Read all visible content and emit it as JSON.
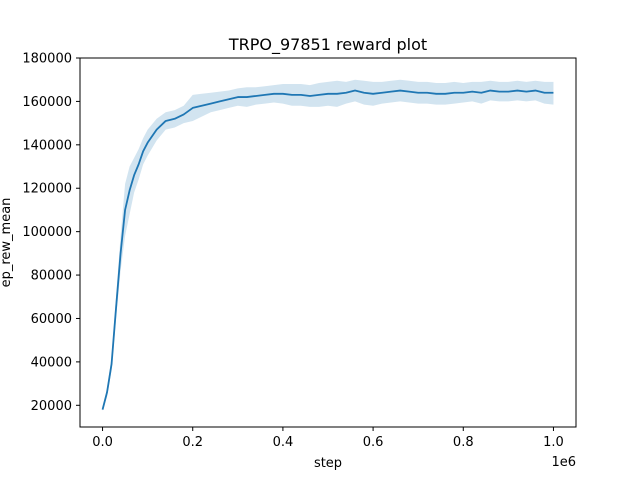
{
  "chart_data": {
    "type": "line",
    "title": "TRPO_97851 reward plot",
    "xlabel": "step",
    "ylabel": "ep_rew_mean",
    "x_offset_label": "1e6",
    "xlim": [
      -0.05,
      1.05
    ],
    "ylim": [
      10000,
      180000
    ],
    "xticks": [
      0.0,
      0.2,
      0.4,
      0.6,
      0.8,
      1.0
    ],
    "xtick_labels": [
      "0.0",
      "0.2",
      "0.4",
      "0.6",
      "0.8",
      "1.0"
    ],
    "yticks": [
      20000,
      40000,
      60000,
      80000,
      100000,
      120000,
      140000,
      160000,
      180000
    ],
    "ytick_labels": [
      "20000",
      "40000",
      "60000",
      "80000",
      "100000",
      "120000",
      "140000",
      "160000",
      "180000"
    ],
    "grid": false,
    "colors": {
      "line": "#1f77b4",
      "band": "#1f77b4"
    },
    "series": [
      {
        "x": [
          0.0,
          0.01,
          0.02,
          0.03,
          0.04,
          0.05,
          0.06,
          0.07,
          0.08,
          0.09,
          0.1,
          0.12,
          0.14,
          0.16,
          0.18,
          0.2,
          0.22,
          0.24,
          0.26,
          0.28,
          0.3,
          0.32,
          0.34,
          0.36,
          0.38,
          0.4,
          0.42,
          0.44,
          0.46,
          0.48,
          0.5,
          0.52,
          0.54,
          0.56,
          0.58,
          0.6,
          0.62,
          0.64,
          0.66,
          0.68,
          0.7,
          0.72,
          0.74,
          0.76,
          0.78,
          0.8,
          0.82,
          0.84,
          0.86,
          0.88,
          0.9,
          0.92,
          0.94,
          0.96,
          0.98,
          1.0
        ],
        "y": [
          18000,
          26000,
          39000,
          65000,
          90000,
          110000,
          119000,
          126000,
          131000,
          137000,
          141000,
          147000,
          151000,
          152000,
          154000,
          157000,
          158000,
          159000,
          160000,
          161000,
          162000,
          162000,
          162500,
          163000,
          163500,
          163500,
          163000,
          163000,
          162500,
          163000,
          163500,
          163500,
          164000,
          165000,
          164000,
          163500,
          164000,
          164500,
          165000,
          164500,
          164000,
          164000,
          163500,
          163500,
          164000,
          164000,
          164500,
          164000,
          165000,
          164500,
          164500,
          165000,
          164500,
          165000,
          164000,
          164000
        ],
        "upper": [
          18500,
          28000,
          42000,
          70000,
          98000,
          122000,
          130000,
          134000,
          138000,
          143000,
          147000,
          152000,
          155000,
          156000,
          158000,
          163000,
          163500,
          164000,
          164500,
          165000,
          166000,
          166500,
          166500,
          167000,
          167500,
          168000,
          168000,
          168000,
          167500,
          168500,
          169000,
          169500,
          169000,
          170000,
          169500,
          169000,
          169000,
          169500,
          170000,
          169500,
          169000,
          169000,
          168500,
          168500,
          169000,
          168500,
          169000,
          169000,
          169500,
          169000,
          169000,
          169500,
          169000,
          169500,
          169000,
          169000
        ],
        "lower": [
          17500,
          24000,
          36000,
          60000,
          82000,
          98000,
          108000,
          118000,
          124000,
          131000,
          135000,
          142000,
          147000,
          148000,
          150000,
          151000,
          153000,
          155000,
          156000,
          157000,
          158000,
          157500,
          158500,
          159000,
          159500,
          159000,
          158000,
          158000,
          157500,
          157500,
          158000,
          157500,
          159000,
          160000,
          158500,
          158000,
          159000,
          159500,
          160000,
          159500,
          159000,
          159000,
          158500,
          158500,
          159000,
          159500,
          160000,
          159000,
          160500,
          160000,
          160000,
          160500,
          160000,
          160500,
          159000,
          158500
        ]
      }
    ]
  }
}
